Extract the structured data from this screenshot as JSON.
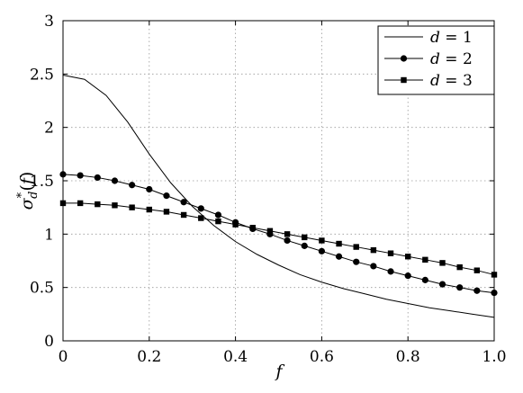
{
  "chart_data": {
    "type": "line",
    "title": "",
    "xlabel": "f",
    "ylabel": "σ*d(f)",
    "xlim": [
      0,
      1
    ],
    "ylim": [
      0,
      3
    ],
    "x_ticks": [
      0,
      0.2,
      0.4,
      0.6,
      0.8,
      1.0
    ],
    "x_tick_labels": [
      "0",
      "0.2",
      "0.4",
      "0.6",
      "0.8",
      "1.0"
    ],
    "y_ticks": [
      0,
      0.5,
      1,
      1.5,
      2,
      2.5,
      3
    ],
    "y_tick_labels": [
      "0",
      "0.5",
      "1",
      "1.5",
      "2",
      "2.5",
      "3"
    ],
    "grid": true,
    "legend_position": "top-right",
    "series": [
      {
        "name": "d = 1",
        "marker": "none",
        "x": [
          0,
          0.05,
          0.1,
          0.15,
          0.2,
          0.25,
          0.3,
          0.35,
          0.4,
          0.45,
          0.5,
          0.55,
          0.6,
          0.65,
          0.7,
          0.75,
          0.8,
          0.85,
          0.9,
          0.95,
          1.0
        ],
        "y": [
          2.49,
          2.45,
          2.3,
          2.05,
          1.75,
          1.48,
          1.26,
          1.08,
          0.93,
          0.81,
          0.71,
          0.62,
          0.55,
          0.49,
          0.44,
          0.39,
          0.35,
          0.31,
          0.28,
          0.25,
          0.22
        ]
      },
      {
        "name": "d = 2",
        "marker": "circle",
        "x": [
          0,
          0.04,
          0.08,
          0.12,
          0.16,
          0.2,
          0.24,
          0.28,
          0.32,
          0.36,
          0.4,
          0.44,
          0.48,
          0.52,
          0.56,
          0.6,
          0.64,
          0.68,
          0.72,
          0.76,
          0.8,
          0.84,
          0.88,
          0.92,
          0.96,
          1.0
        ],
        "y": [
          1.56,
          1.55,
          1.53,
          1.5,
          1.46,
          1.42,
          1.36,
          1.3,
          1.24,
          1.18,
          1.11,
          1.05,
          1.0,
          0.94,
          0.89,
          0.84,
          0.79,
          0.74,
          0.7,
          0.65,
          0.61,
          0.57,
          0.53,
          0.5,
          0.47,
          0.45
        ]
      },
      {
        "name": "d = 3",
        "marker": "square",
        "x": [
          0,
          0.04,
          0.08,
          0.12,
          0.16,
          0.2,
          0.24,
          0.28,
          0.32,
          0.36,
          0.4,
          0.44,
          0.48,
          0.52,
          0.56,
          0.6,
          0.64,
          0.68,
          0.72,
          0.76,
          0.8,
          0.84,
          0.88,
          0.92,
          0.96,
          1.0
        ],
        "y": [
          1.29,
          1.29,
          1.28,
          1.27,
          1.25,
          1.23,
          1.21,
          1.18,
          1.15,
          1.12,
          1.09,
          1.06,
          1.03,
          1.0,
          0.97,
          0.94,
          0.91,
          0.88,
          0.85,
          0.82,
          0.79,
          0.76,
          0.73,
          0.69,
          0.66,
          0.62
        ]
      }
    ]
  },
  "legend": {
    "entries": [
      "d = 1",
      "d = 2",
      "d = 3"
    ]
  }
}
